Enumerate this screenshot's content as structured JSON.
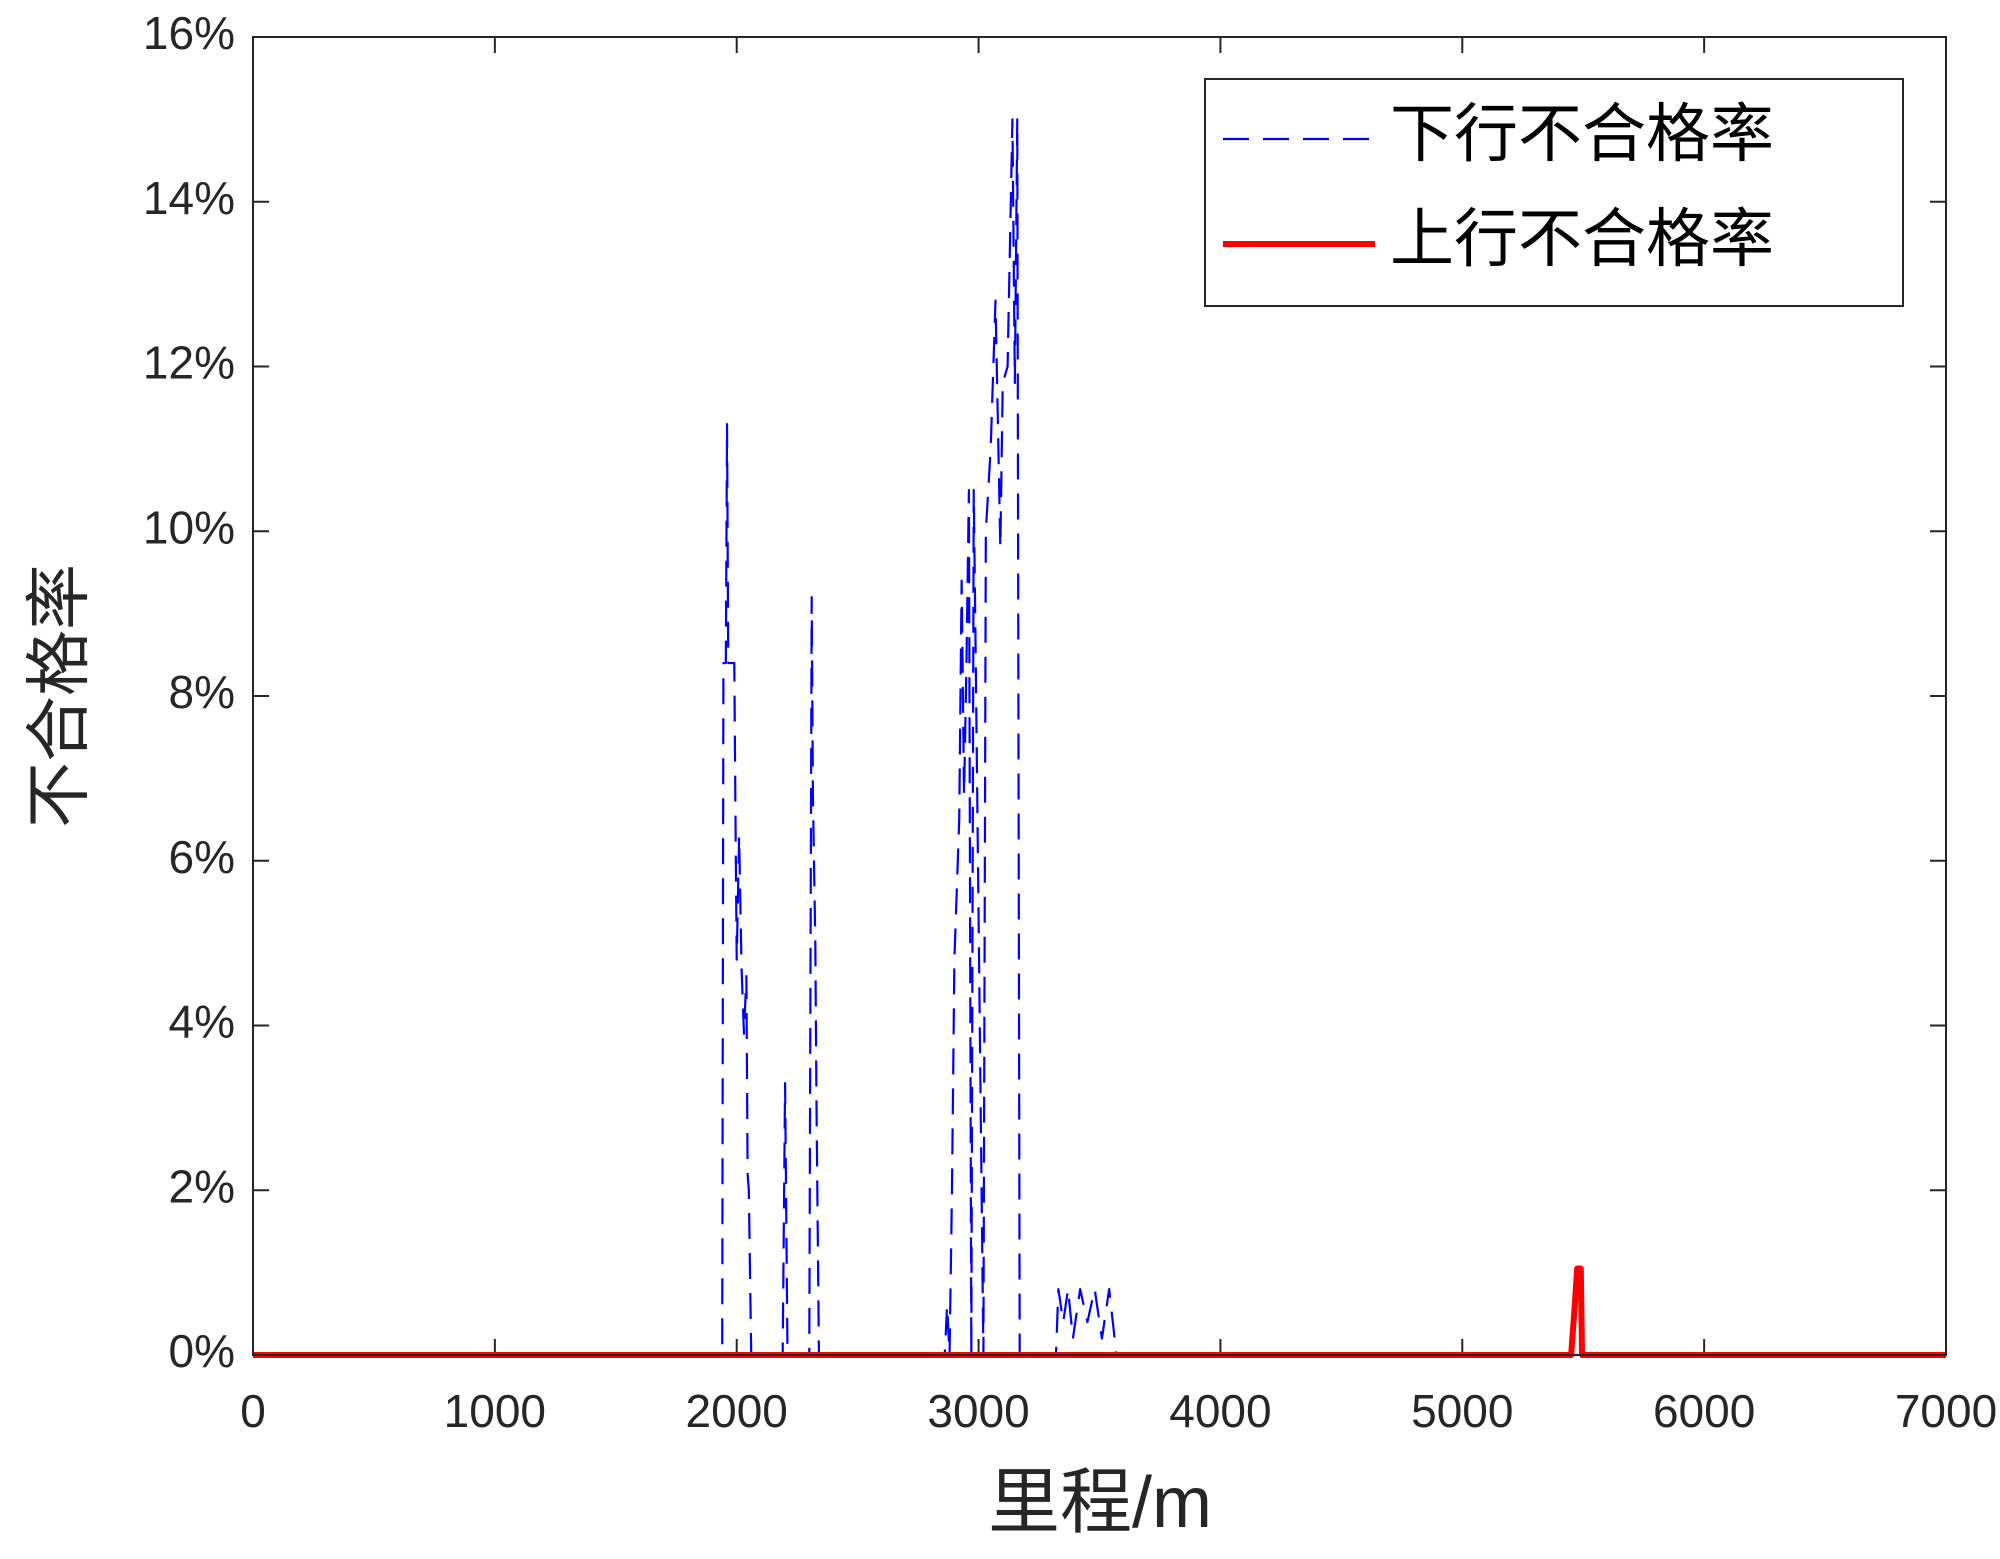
{
  "chart_data": {
    "type": "line",
    "xlabel": "里程/m",
    "ylabel": "不合格率",
    "xlim": [
      0,
      7000
    ],
    "xticks": [
      0,
      1000,
      2000,
      3000,
      4000,
      5000,
      6000,
      7000
    ],
    "ylim": [
      0,
      16
    ],
    "yticks": [
      {
        "value": 0,
        "label": "0%"
      },
      {
        "value": 2,
        "label": "2%"
      },
      {
        "value": 4,
        "label": "4%"
      },
      {
        "value": 6,
        "label": "6%"
      },
      {
        "value": 8,
        "label": "8%"
      },
      {
        "value": 10,
        "label": "10%"
      },
      {
        "value": 12,
        "label": "12%"
      },
      {
        "value": 14,
        "label": "14%"
      },
      {
        "value": 16,
        "label": "16%"
      }
    ],
    "grid": false,
    "legend": "upper right",
    "series": [
      {
        "name": "下行不合格率",
        "color": "#0000ff",
        "style": "dashed",
        "x": [
          0,
          1940,
          1945,
          1955,
          1960,
          1965,
          1975,
          1990,
          1995,
          2000,
          2010,
          2020,
          2030,
          2040,
          2045,
          2050,
          2060,
          2190,
          2200,
          2210,
          2300,
          2310,
          2315,
          2325,
          2330,
          2340,
          2860,
          2870,
          2880,
          2890,
          2900,
          2920,
          2930,
          2940,
          2950,
          2960,
          2970,
          2980,
          2990,
          3020,
          3030,
          3050,
          3070,
          3090,
          3100,
          3120,
          3140,
          3150,
          3160,
          3170,
          3320,
          3330,
          3350,
          3370,
          3390,
          3420,
          3450,
          3480,
          3510,
          3540,
          3570,
          7000
        ],
        "values": [
          0,
          0,
          8.4,
          8.4,
          11.3,
          8.4,
          8.4,
          8.4,
          6.5,
          4.8,
          6.3,
          4.7,
          3.9,
          4.6,
          2.2,
          2.0,
          0,
          0,
          3.3,
          0,
          0,
          9.2,
          6.8,
          5.0,
          3.0,
          0,
          0,
          0.6,
          0,
          2.0,
          4.8,
          6.5,
          9.4,
          6.8,
          8.4,
          10.5,
          0,
          10.5,
          8.0,
          0,
          10.0,
          11.0,
          12.8,
          9.8,
          11.8,
          12.0,
          15.0,
          11.8,
          15.0,
          0,
          0,
          0.8,
          0.4,
          0.8,
          0.2,
          0.8,
          0.4,
          0.8,
          0.2,
          0.8,
          0,
          0
        ]
      },
      {
        "name": "上行不合格率",
        "color": "#ff0000",
        "style": "solid",
        "x": [
          0,
          5450,
          5465,
          5475,
          5490,
          5495,
          7000
        ],
        "values": [
          0,
          0,
          0.6,
          1.05,
          1.05,
          0,
          0
        ]
      }
    ]
  }
}
